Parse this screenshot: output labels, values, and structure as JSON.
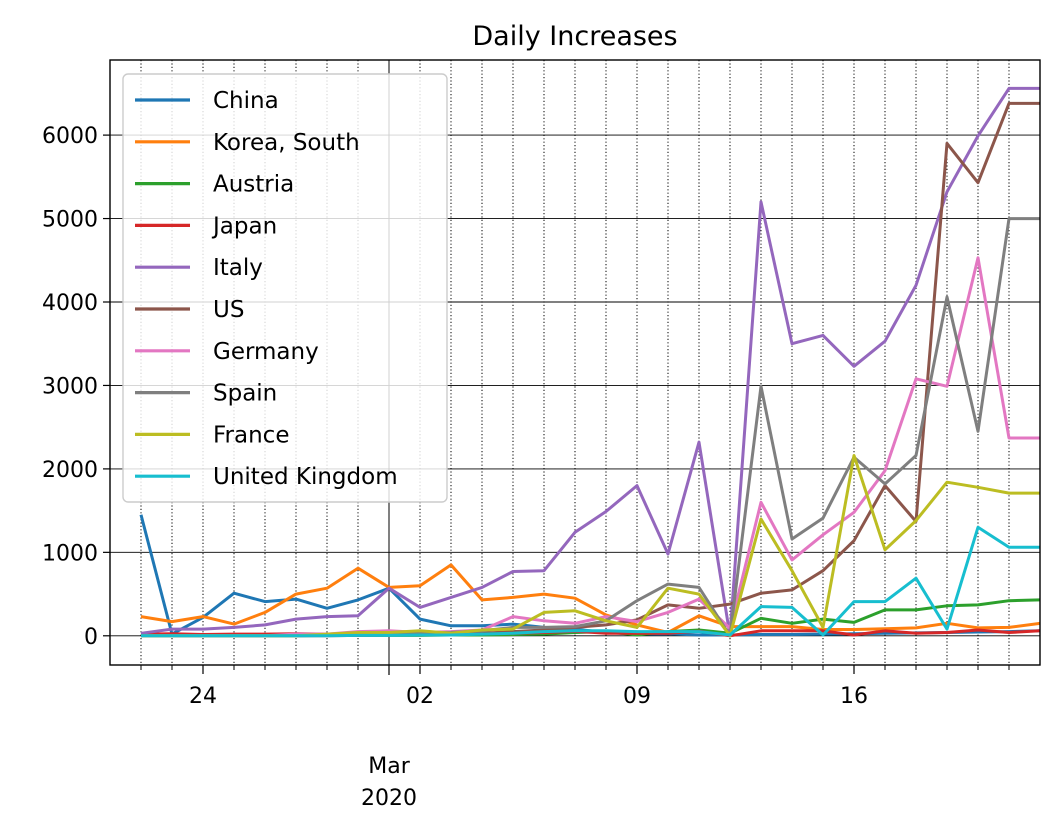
{
  "chart_data": {
    "type": "line",
    "title": "Daily Increases",
    "xlabel": "",
    "ylabel": "",
    "x": [
      "2020-02-22",
      "2020-02-23",
      "2020-02-24",
      "2020-02-25",
      "2020-02-26",
      "2020-02-27",
      "2020-02-28",
      "2020-02-29",
      "2020-03-01",
      "2020-03-02",
      "2020-03-03",
      "2020-03-04",
      "2020-03-05",
      "2020-03-06",
      "2020-03-07",
      "2020-03-08",
      "2020-03-09",
      "2020-03-10",
      "2020-03-11",
      "2020-03-12",
      "2020-03-13",
      "2020-03-14",
      "2020-03-15",
      "2020-03-16",
      "2020-03-17",
      "2020-03-18",
      "2020-03-19",
      "2020-03-20",
      "2020-03-21",
      "2020-03-22"
    ],
    "xlim": [
      "2020-02-21",
      "2020-03-22"
    ],
    "ylim": [
      -350,
      6900
    ],
    "y_ticks": [
      0,
      1000,
      2000,
      3000,
      4000,
      5000,
      6000
    ],
    "x_major_ticks": [
      {
        "date": "2020-02-24",
        "label": "24"
      },
      {
        "date": "2020-03-02",
        "label": "02"
      },
      {
        "date": "2020-03-09",
        "label": "09"
      },
      {
        "date": "2020-03-16",
        "label": "16"
      }
    ],
    "x_month_tick": {
      "date": "2020-03-01",
      "label_line1": "Mar",
      "label_line2": "2020"
    },
    "grid": true,
    "legend_position": "top-left",
    "series": [
      {
        "name": "China",
        "color": "#1f77b4",
        "values": [
          1450,
          20,
          220,
          510,
          410,
          440,
          330,
          430,
          570,
          200,
          120,
          120,
          140,
          100,
          80,
          40,
          20,
          25,
          10,
          10,
          15,
          15,
          20,
          25,
          30,
          35,
          40,
          45,
          50,
          60
        ]
      },
      {
        "name": "Korea, South",
        "color": "#ff7f0e",
        "values": [
          230,
          170,
          230,
          140,
          280,
          500,
          570,
          810,
          580,
          600,
          850,
          430,
          460,
          500,
          450,
          250,
          130,
          40,
          240,
          110,
          110,
          110,
          75,
          75,
          85,
          95,
          150,
          95,
          100,
          150
        ]
      },
      {
        "name": "Austria",
        "color": "#2ca02c",
        "values": [
          0,
          0,
          0,
          0,
          0,
          0,
          5,
          5,
          5,
          5,
          10,
          10,
          15,
          20,
          40,
          50,
          10,
          50,
          70,
          30,
          210,
          150,
          200,
          160,
          310,
          310,
          360,
          370,
          420,
          430
        ]
      },
      {
        "name": "Japan",
        "color": "#d62728",
        "values": [
          20,
          25,
          15,
          20,
          20,
          25,
          20,
          15,
          20,
          15,
          20,
          30,
          30,
          40,
          55,
          30,
          30,
          30,
          55,
          0,
          60,
          60,
          60,
          10,
          60,
          30,
          40,
          70,
          40,
          60
        ]
      },
      {
        "name": "Italy",
        "color": "#9467bd",
        "values": [
          30,
          80,
          80,
          100,
          130,
          200,
          230,
          240,
          570,
          340,
          460,
          580,
          770,
          780,
          1240,
          1490,
          1800,
          980,
          2320,
          0,
          5200,
          3500,
          3600,
          3230,
          3530,
          4200,
          5320,
          5990,
          6560,
          6560
        ]
      },
      {
        "name": "US",
        "color": "#8c564b",
        "values": [
          0,
          0,
          0,
          0,
          0,
          0,
          0,
          5,
          10,
          15,
          20,
          30,
          50,
          70,
          100,
          130,
          190,
          370,
          330,
          380,
          510,
          550,
          780,
          1140,
          1800,
          1370,
          5900,
          5430,
          6380,
          6380
        ]
      },
      {
        "name": "Germany",
        "color": "#e377c2",
        "values": [
          0,
          0,
          0,
          0,
          0,
          20,
          20,
          50,
          60,
          40,
          50,
          70,
          230,
          180,
          150,
          230,
          170,
          280,
          440,
          90,
          1600,
          910,
          1210,
          1480,
          1980,
          3080,
          2990,
          4530,
          2370,
          2370
        ]
      },
      {
        "name": "Spain",
        "color": "#7f7f7f",
        "values": [
          0,
          0,
          0,
          0,
          0,
          0,
          10,
          10,
          20,
          30,
          40,
          60,
          100,
          100,
          110,
          180,
          420,
          620,
          580,
          0,
          2990,
          1160,
          1410,
          2140,
          1820,
          2160,
          4060,
          2450,
          5000,
          5000
        ]
      },
      {
        "name": "France",
        "color": "#bcbd22",
        "values": [
          0,
          0,
          0,
          0,
          0,
          0,
          20,
          40,
          40,
          60,
          30,
          70,
          80,
          280,
          300,
          180,
          100,
          570,
          500,
          0,
          1400,
          780,
          100,
          2160,
          1030,
          1380,
          1840,
          1780,
          1710,
          1710
        ]
      },
      {
        "name": "United Kingdom",
        "color": "#17becf",
        "values": [
          0,
          0,
          0,
          0,
          0,
          0,
          0,
          5,
          5,
          10,
          10,
          20,
          30,
          50,
          60,
          60,
          50,
          50,
          50,
          10,
          350,
          340,
          10,
          410,
          410,
          690,
          80,
          1300,
          1060,
          1060
        ]
      }
    ]
  }
}
